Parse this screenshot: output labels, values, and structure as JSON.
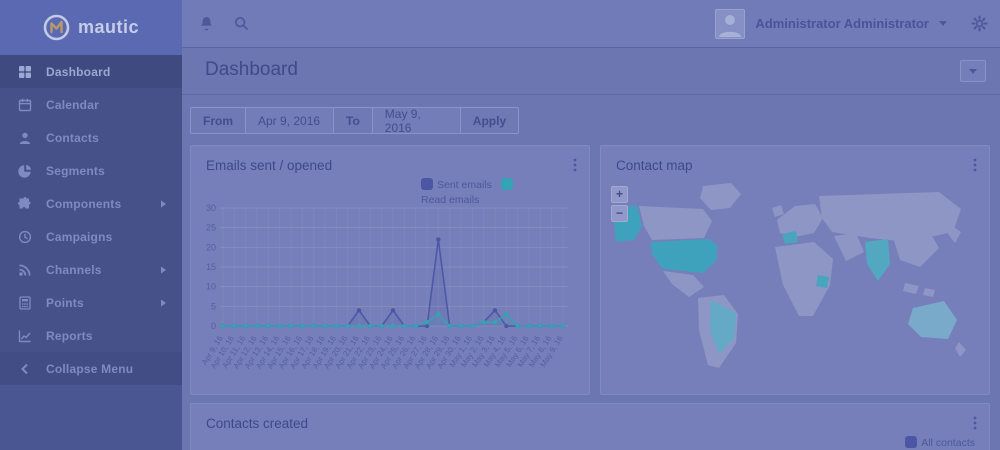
{
  "app": {
    "brand": "mautic"
  },
  "topbar": {
    "user_name": "Administrator Administrator"
  },
  "sidebar": {
    "items": [
      {
        "label": "Dashboard",
        "active": true
      },
      {
        "label": "Calendar"
      },
      {
        "label": "Contacts"
      },
      {
        "label": "Segments"
      },
      {
        "label": "Components",
        "has_submenu": true
      },
      {
        "label": "Campaigns"
      },
      {
        "label": "Channels",
        "has_submenu": true
      },
      {
        "label": "Points",
        "has_submenu": true
      },
      {
        "label": "Reports"
      },
      {
        "label": "Collapse Menu"
      }
    ]
  },
  "page": {
    "title": "Dashboard"
  },
  "filter": {
    "from_label": "From",
    "from_value": "Apr 9, 2016",
    "to_label": "To",
    "to_value": "May 9, 2016",
    "apply_label": "Apply"
  },
  "panels": {
    "emails": {
      "title": "Emails sent / opened"
    },
    "contact_map": {
      "title": "Contact map",
      "zoom_in": "+",
      "zoom_out": "−",
      "highlighted_countries": [
        {
          "name": "United States",
          "slug": "usa",
          "color": "#3fa2bd"
        },
        {
          "name": "Brazil",
          "slug": "brazil",
          "color": "#64a9c6"
        },
        {
          "name": "France",
          "slug": "france",
          "color": "#4aa4be"
        },
        {
          "name": "India",
          "slug": "india",
          "color": "#52a7c1"
        },
        {
          "name": "Uganda",
          "slug": "uganda",
          "color": "#49a4bd"
        },
        {
          "name": "Australia",
          "slug": "australia",
          "color": "#79aac9"
        }
      ],
      "land_color": "#8e96c5"
    },
    "contacts_created": {
      "title": "Contacts created",
      "legend": "All contacts",
      "legend_color": "#4c56a5"
    }
  },
  "chart_data": {
    "type": "line",
    "title": "Emails sent / opened",
    "categories": [
      "Apr 9, 16",
      "Apr 10, 16",
      "Apr 11, 16",
      "Apr 12, 16",
      "Apr 13, 16",
      "Apr 14, 16",
      "Apr 15, 16",
      "Apr 16, 16",
      "Apr 17, 16",
      "Apr 18, 16",
      "Apr 19, 16",
      "Apr 20, 16",
      "Apr 21, 16",
      "Apr 22, 16",
      "Apr 23, 16",
      "Apr 24, 16",
      "Apr 25, 16",
      "Apr 26, 16",
      "Apr 27, 16",
      "Apr 28, 16",
      "Apr 29, 16",
      "Apr 30, 16",
      "May 1, 16",
      "May 2, 16",
      "May 3, 16",
      "May 4, 16",
      "May 5, 16",
      "May 6, 16",
      "May 7, 16",
      "May 8, 16",
      "May 9, 16"
    ],
    "series": [
      {
        "name": "Sent emails",
        "color": "#4c56a5",
        "values": [
          0,
          0,
          0,
          0,
          0,
          0,
          0,
          0,
          0,
          0,
          0,
          0,
          4,
          0,
          0,
          4,
          0,
          0,
          0,
          22,
          0,
          0,
          0,
          1,
          4,
          0,
          0,
          0,
          0,
          0,
          0
        ]
      },
      {
        "name": "Read emails",
        "color": "#35a2b5",
        "values": [
          0,
          0,
          0,
          0,
          0,
          0,
          0,
          0,
          0,
          0,
          0,
          0,
          0,
          0,
          0,
          0,
          0,
          0,
          1,
          3,
          0,
          0,
          0,
          1,
          1,
          3,
          0,
          0,
          0,
          0,
          0
        ]
      }
    ],
    "ylim": [
      0,
      30
    ],
    "yticks": [
      0,
      5,
      10,
      15,
      20,
      25,
      30
    ],
    "grid": true,
    "legend_position": "top-right",
    "xlabel": "",
    "ylabel": ""
  }
}
